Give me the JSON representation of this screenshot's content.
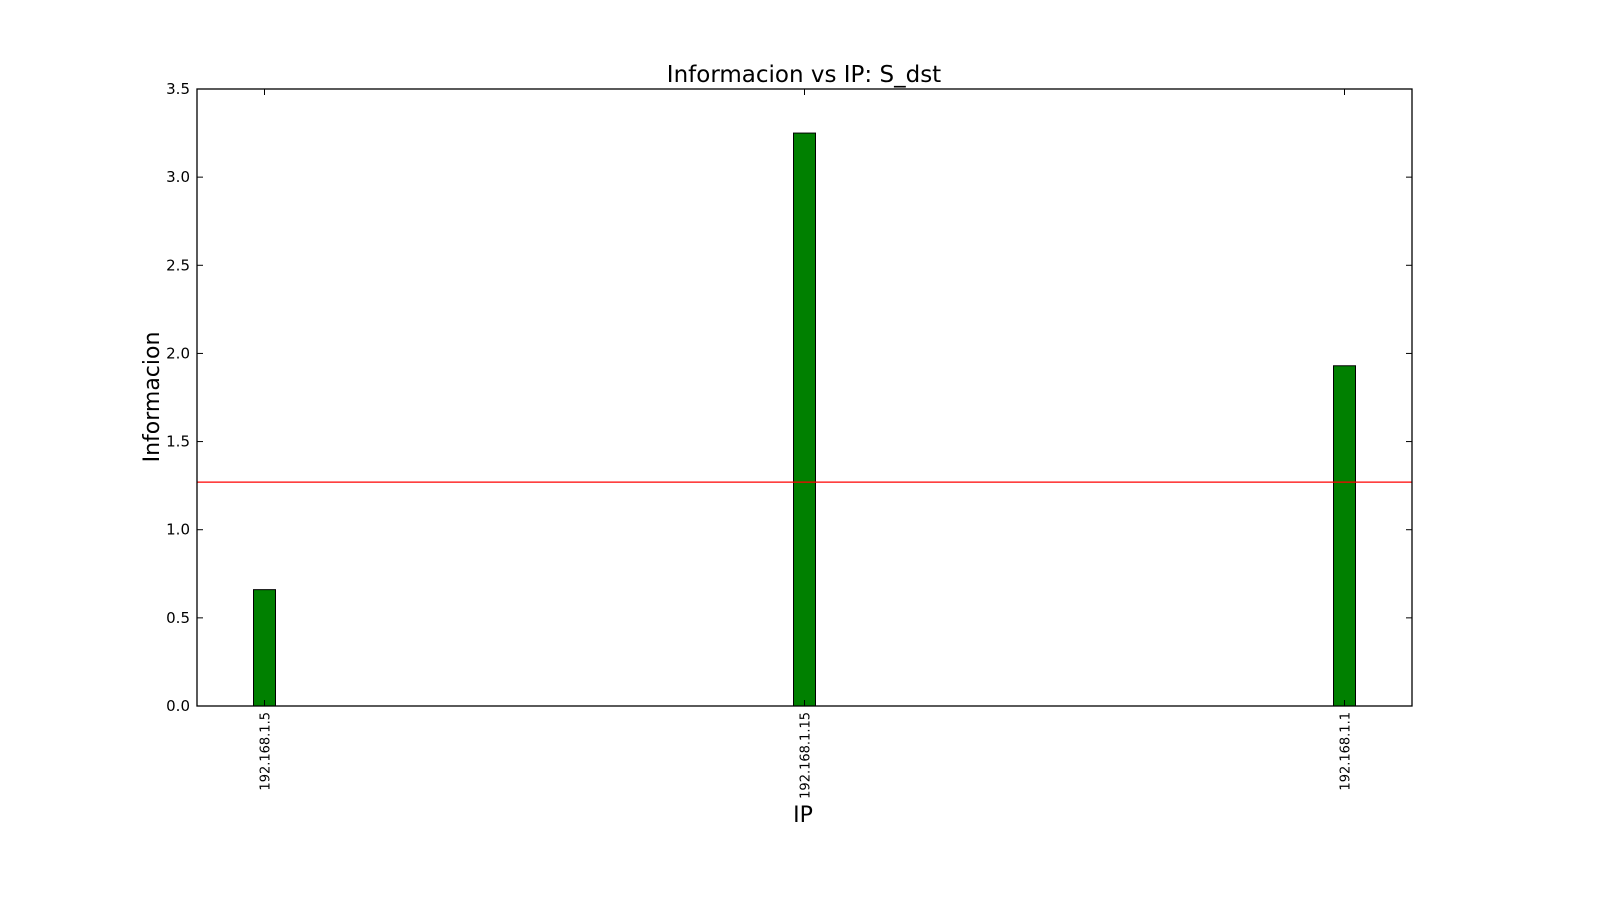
{
  "chart_data": {
    "type": "bar",
    "title": "Informacion vs IP: S_dst",
    "xlabel": "IP",
    "ylabel": "Informacion",
    "categories": [
      "192.168.1.5",
      "192.168.1.15",
      "192.168.1.1"
    ],
    "values": [
      0.66,
      3.25,
      1.93
    ],
    "ylim": [
      0,
      3.5
    ],
    "yticks": [
      "0.0",
      "0.5",
      "1.0",
      "1.5",
      "2.0",
      "2.5",
      "3.0",
      "3.5"
    ],
    "reference_line": {
      "y": 1.27,
      "color": "#ff0000"
    },
    "bar_color": "#008000",
    "grid": false,
    "legend": "none"
  }
}
